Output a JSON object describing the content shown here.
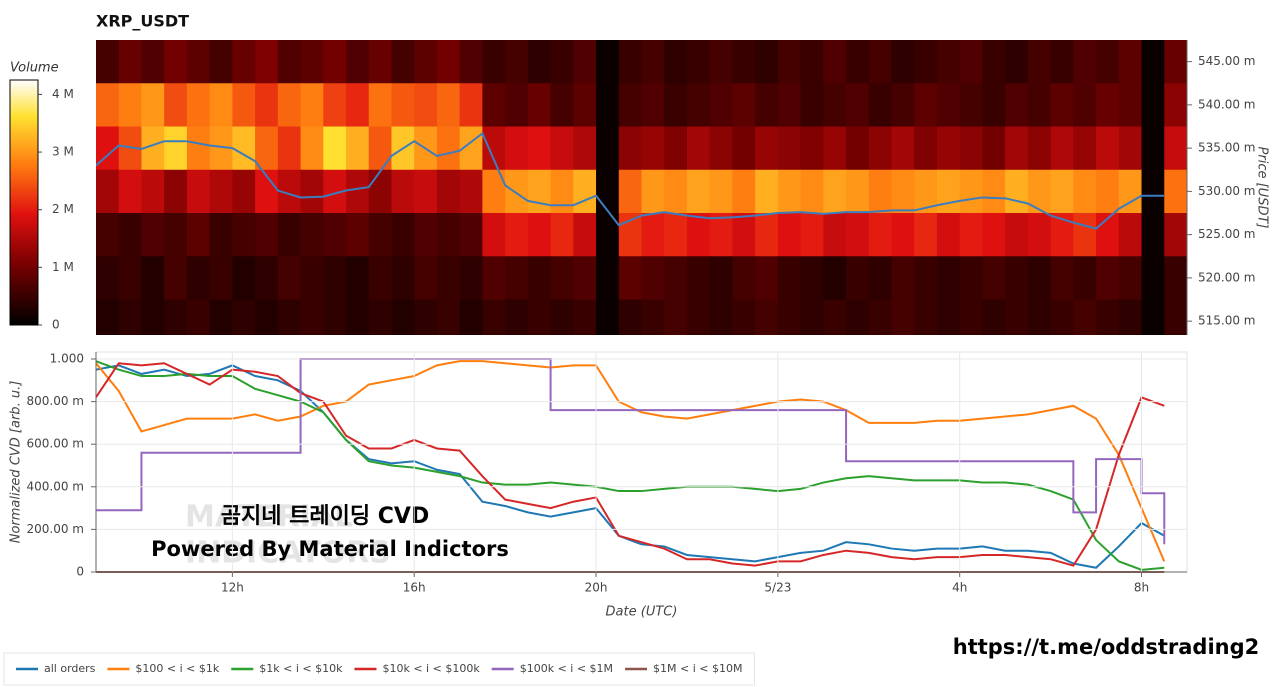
{
  "chart_data": [
    {
      "type": "heatmap",
      "title": "XRP_USDT",
      "x": [
        9,
        9.5,
        10,
        10.5,
        11,
        11.5,
        12,
        12.5,
        13,
        13.5,
        14,
        14.5,
        15,
        15.5,
        16,
        16.5,
        17,
        17.5,
        18,
        18.5,
        19,
        19.5,
        20,
        20.5,
        21,
        21.5,
        22,
        22.5,
        23,
        23.5,
        24,
        24.5,
        25,
        25.5,
        26,
        26.5,
        27,
        27.5,
        28,
        28.5,
        29,
        29.5,
        30,
        30.5,
        31,
        31.5,
        32,
        32.5
      ],
      "xlim": [
        9,
        33
      ],
      "bin_centers": [
        0.545,
        0.54,
        0.535,
        0.53,
        0.525,
        0.52,
        0.515
      ],
      "z": [
        [
          0.6,
          0.9,
          0.7,
          1.0,
          0.8,
          0.6,
          0.9,
          1.1,
          0.7,
          0.8,
          1.0,
          0.7,
          0.9,
          0.6,
          0.8,
          1.0,
          0.7,
          0.5,
          0.6,
          0.4,
          0.5,
          0.7,
          0.1,
          0.5,
          0.6,
          0.4,
          0.5,
          0.6,
          0.5,
          0.4,
          0.6,
          0.5,
          0.7,
          0.5,
          0.6,
          0.4,
          0.5,
          0.6,
          0.7,
          0.5,
          0.4,
          0.6,
          0.5,
          0.7,
          0.6,
          0.8,
          0.1,
          0.9
        ],
        [
          2.6,
          2.8,
          3.0,
          2.4,
          2.7,
          2.9,
          2.5,
          2.2,
          2.6,
          2.8,
          2.3,
          2.1,
          2.7,
          2.5,
          2.4,
          2.6,
          2.2,
          0.8,
          0.7,
          0.9,
          0.6,
          0.8,
          0.1,
          0.6,
          0.7,
          0.5,
          0.6,
          0.7,
          0.8,
          0.6,
          0.7,
          0.5,
          0.6,
          0.7,
          0.5,
          0.6,
          0.8,
          0.7,
          0.6,
          0.5,
          0.7,
          0.6,
          0.8,
          0.7,
          0.9,
          0.8,
          0.1,
          1.2
        ],
        [
          1.9,
          2.4,
          3.2,
          3.5,
          2.8,
          3.0,
          3.3,
          2.6,
          2.2,
          2.9,
          3.6,
          3.2,
          2.5,
          3.4,
          3.0,
          2.7,
          3.1,
          1.6,
          1.8,
          1.9,
          1.7,
          1.5,
          0.1,
          1.2,
          1.3,
          1.1,
          1.4,
          1.2,
          1.0,
          1.3,
          1.2,
          1.1,
          1.3,
          1.0,
          1.2,
          1.4,
          1.1,
          1.3,
          1.2,
          1.0,
          1.4,
          1.2,
          1.5,
          1.3,
          1.6,
          1.4,
          0.1,
          1.7
        ],
        [
          1.4,
          1.8,
          1.6,
          1.2,
          1.7,
          1.5,
          1.3,
          1.9,
          1.6,
          1.4,
          1.8,
          1.5,
          1.2,
          1.6,
          1.7,
          1.4,
          1.5,
          2.8,
          3.0,
          3.1,
          2.9,
          3.2,
          0.1,
          2.6,
          3.0,
          2.9,
          3.1,
          3.0,
          2.8,
          3.2,
          3.0,
          2.9,
          3.1,
          3.0,
          2.8,
          2.9,
          3.0,
          3.1,
          3.0,
          2.9,
          3.2,
          3.0,
          3.1,
          2.9,
          2.8,
          3.0,
          0.1,
          2.7
        ],
        [
          0.6,
          0.5,
          0.7,
          0.6,
          0.8,
          0.5,
          0.6,
          0.7,
          0.5,
          0.6,
          0.7,
          0.8,
          0.6,
          0.5,
          0.7,
          0.6,
          0.7,
          1.8,
          2.0,
          1.9,
          2.1,
          1.7,
          0.1,
          2.2,
          2.0,
          2.1,
          1.9,
          2.0,
          1.8,
          2.1,
          1.9,
          2.0,
          1.7,
          1.8,
          2.0,
          1.9,
          2.1,
          1.8,
          2.0,
          1.9,
          1.7,
          1.8,
          2.0,
          2.2,
          1.9,
          1.6,
          0.1,
          1.4
        ],
        [
          0.4,
          0.5,
          0.3,
          0.6,
          0.4,
          0.5,
          0.3,
          0.4,
          0.6,
          0.5,
          0.4,
          0.3,
          0.5,
          0.4,
          0.6,
          0.5,
          0.4,
          0.7,
          0.6,
          0.5,
          0.6,
          0.7,
          0.1,
          0.8,
          0.7,
          0.6,
          0.5,
          0.4,
          0.6,
          0.7,
          0.5,
          0.4,
          0.3,
          0.5,
          0.4,
          0.6,
          0.5,
          0.4,
          0.5,
          0.6,
          0.5,
          0.4,
          0.6,
          0.5,
          0.7,
          0.6,
          0.1,
          0.5
        ],
        [
          0.3,
          0.4,
          0.3,
          0.4,
          0.5,
          0.3,
          0.4,
          0.3,
          0.4,
          0.5,
          0.4,
          0.3,
          0.4,
          0.3,
          0.4,
          0.5,
          0.3,
          0.5,
          0.4,
          0.5,
          0.4,
          0.5,
          0.1,
          0.4,
          0.5,
          0.6,
          0.5,
          0.4,
          0.5,
          0.6,
          0.5,
          0.4,
          0.5,
          0.4,
          0.5,
          0.6,
          0.5,
          0.4,
          0.5,
          0.4,
          0.5,
          0.4,
          0.5,
          0.6,
          0.5,
          0.4,
          0.1,
          0.5
        ]
      ],
      "colorbar_label": "Volume",
      "clim": [
        0,
        4.25
      ],
      "colorbar_ticks": [
        0,
        {
          "value": 1,
          "label": "1 M"
        },
        {
          "value": 2,
          "label": "2 M"
        },
        {
          "value": 3,
          "label": "3 M"
        },
        {
          "value": 4,
          "label": "4 M"
        }
      ],
      "ylabel": "Price [USDT]",
      "ylim": [
        0.5134,
        0.5475
      ],
      "yticks": [
        {
          "value": 0.515,
          "label": "515.00 m"
        },
        {
          "value": 0.52,
          "label": "520.00 m"
        },
        {
          "value": 0.525,
          "label": "525.00 m"
        },
        {
          "value": 0.53,
          "label": "530.00 m"
        },
        {
          "value": 0.535,
          "label": "535.00 m"
        },
        {
          "value": 0.54,
          "label": "540.00 m"
        },
        {
          "value": 0.545,
          "label": "545.00 m"
        }
      ],
      "series": [
        {
          "color": "#3b7dbf",
          "values": [
            0.533,
            0.5353,
            0.5349,
            0.5358,
            0.5358,
            0.5353,
            0.535,
            0.5335,
            0.5301,
            0.5293,
            0.5294,
            0.5301,
            0.5305,
            0.5341,
            0.5358,
            0.5341,
            0.5347,
            0.5367,
            0.5307,
            0.5289,
            0.5284,
            0.5284,
            0.5295,
            0.5261,
            0.5272,
            0.5276,
            0.5272,
            0.5269,
            0.527,
            0.5272,
            0.5275,
            0.5276,
            0.5274,
            0.5276,
            0.5276,
            0.5278,
            0.5278,
            0.5284,
            0.5289,
            0.5293,
            0.5292,
            0.5286,
            0.5272,
            0.5264,
            0.5257,
            0.528,
            0.5295,
            0.5295
          ]
        }
      ]
    },
    {
      "type": "line",
      "xlabel": "Date (UTC)",
      "ylabel": "Normalized CVD [arb. u.]",
      "x": [
        9,
        9.5,
        10,
        10.5,
        11,
        11.5,
        12,
        12.5,
        13,
        13.5,
        14,
        14.5,
        15,
        15.5,
        16,
        16.5,
        17,
        17.5,
        18,
        18.5,
        19,
        19.5,
        20,
        20.5,
        21,
        21.5,
        22,
        22.5,
        23,
        23.5,
        24,
        24.5,
        25,
        25.5,
        26,
        26.5,
        27,
        27.5,
        28,
        28.5,
        29,
        29.5,
        30,
        30.5,
        31,
        31.5,
        32,
        32.5
      ],
      "xlim": [
        9,
        33
      ],
      "xticks": [
        {
          "value": 12,
          "label": "12h"
        },
        {
          "value": 16,
          "label": "16h"
        },
        {
          "value": 20,
          "label": "20h"
        },
        {
          "value": 24,
          "label": "5/23"
        },
        {
          "value": 28,
          "label": "4h"
        },
        {
          "value": 32,
          "label": "8h"
        }
      ],
      "ylim": [
        0,
        1
      ],
      "yticks": [
        0,
        {
          "value": 0.2,
          "label": "200.00 m"
        },
        {
          "value": 0.4,
          "label": "400.00 m"
        },
        {
          "value": 0.6,
          "label": "600.00 m"
        },
        {
          "value": 0.8,
          "label": "800.00 m"
        },
        {
          "value": 1,
          "label": "1.000"
        }
      ],
      "grid": true,
      "legend": "bottom-left",
      "series": [
        {
          "name": "all orders",
          "color": "#1f77b4",
          "values": [
            0.95,
            0.97,
            0.93,
            0.95,
            0.92,
            0.93,
            0.97,
            0.92,
            0.9,
            0.85,
            0.75,
            0.62,
            0.53,
            0.51,
            0.52,
            0.48,
            0.46,
            0.33,
            0.31,
            0.28,
            0.26,
            0.28,
            0.3,
            0.17,
            0.13,
            0.12,
            0.08,
            0.07,
            0.06,
            0.05,
            0.07,
            0.09,
            0.1,
            0.14,
            0.13,
            0.11,
            0.1,
            0.11,
            0.11,
            0.12,
            0.1,
            0.1,
            0.09,
            0.04,
            0.02,
            0.12,
            0.23,
            0.17
          ]
        },
        {
          "name": "$100 < i < $1k",
          "color": "#ff7f0e",
          "values": [
            0.98,
            0.85,
            0.66,
            0.69,
            0.72,
            0.72,
            0.72,
            0.74,
            0.71,
            0.73,
            0.78,
            0.8,
            0.88,
            0.9,
            0.92,
            0.97,
            0.99,
            0.99,
            0.98,
            0.97,
            0.96,
            0.97,
            0.97,
            0.8,
            0.75,
            0.73,
            0.72,
            0.74,
            0.76,
            0.78,
            0.8,
            0.81,
            0.8,
            0.76,
            0.7,
            0.7,
            0.7,
            0.71,
            0.71,
            0.72,
            0.73,
            0.74,
            0.76,
            0.78,
            0.72,
            0.55,
            0.3,
            0.05
          ]
        },
        {
          "name": "$1k < i < $10k",
          "color": "#2ca02c",
          "values": [
            0.99,
            0.95,
            0.92,
            0.92,
            0.93,
            0.92,
            0.92,
            0.86,
            0.83,
            0.8,
            0.75,
            0.62,
            0.52,
            0.5,
            0.49,
            0.47,
            0.45,
            0.42,
            0.41,
            0.41,
            0.42,
            0.41,
            0.4,
            0.38,
            0.38,
            0.39,
            0.4,
            0.4,
            0.4,
            0.39,
            0.38,
            0.39,
            0.42,
            0.44,
            0.45,
            0.44,
            0.43,
            0.43,
            0.43,
            0.42,
            0.42,
            0.41,
            0.38,
            0.34,
            0.15,
            0.05,
            0.01,
            0.02
          ]
        },
        {
          "name": "$10k < i < $100k",
          "color": "#d62728",
          "values": [
            0.82,
            0.98,
            0.97,
            0.98,
            0.93,
            0.88,
            0.95,
            0.94,
            0.92,
            0.84,
            0.8,
            0.64,
            0.58,
            0.58,
            0.62,
            0.58,
            0.57,
            0.45,
            0.34,
            0.32,
            0.3,
            0.33,
            0.35,
            0.17,
            0.14,
            0.11,
            0.06,
            0.06,
            0.04,
            0.03,
            0.05,
            0.05,
            0.08,
            0.1,
            0.09,
            0.07,
            0.06,
            0.07,
            0.07,
            0.08,
            0.08,
            0.07,
            0.06,
            0.03,
            0.2,
            0.55,
            0.82,
            0.78
          ]
        },
        {
          "name": "$100k < i < $1M",
          "color": "#9467bd",
          "line_shape": "hv",
          "values": [
            0.29,
            0.29,
            0.56,
            0.56,
            0.56,
            0.56,
            0.56,
            0.56,
            0.56,
            1.0,
            1.0,
            1.0,
            1.0,
            1.0,
            1.0,
            1.0,
            1.0,
            1.0,
            1.0,
            1.0,
            0.76,
            0.76,
            0.76,
            0.76,
            0.76,
            0.76,
            0.76,
            0.76,
            0.76,
            0.76,
            0.76,
            0.76,
            0.76,
            0.52,
            0.52,
            0.52,
            0.52,
            0.52,
            0.52,
            0.52,
            0.52,
            0.52,
            0.52,
            0.28,
            0.53,
            0.53,
            0.37,
            0.13
          ]
        },
        {
          "name": "$1M < i < $10M",
          "color": "#8c564b",
          "values": [
            0,
            0,
            0,
            0,
            0,
            0,
            0,
            0,
            0,
            0,
            0,
            0,
            0,
            0,
            0,
            0,
            0,
            0,
            0,
            0,
            0,
            0,
            0,
            0,
            0,
            0,
            0,
            0,
            0,
            0,
            0,
            0,
            0,
            0,
            0,
            0,
            0,
            0,
            0,
            0,
            0,
            0,
            0,
            0,
            0,
            0,
            0,
            0
          ]
        }
      ]
    }
  ],
  "watermark": [
    "MATERIAL",
    "INDICATORS"
  ],
  "overlay_text": [
    "곰지네 트레이딩 CVD",
    "Powered By Material Indictors"
  ],
  "link": "https://t.me/oddstrading2"
}
